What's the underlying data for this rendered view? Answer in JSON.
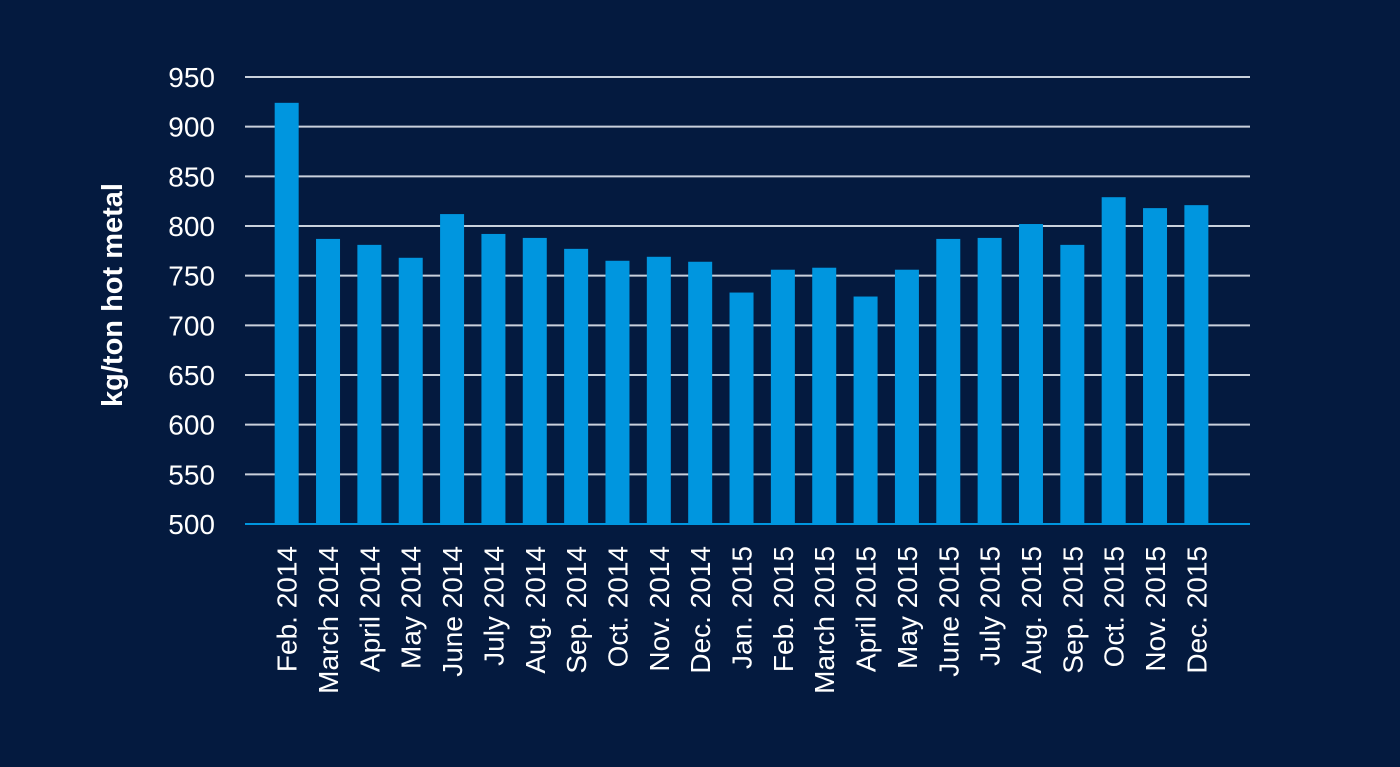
{
  "chart_data": {
    "type": "bar",
    "title": "",
    "xlabel": "",
    "ylabel": "kg/ton hot metal",
    "ylim": [
      500,
      950
    ],
    "yticks": [
      500,
      550,
      600,
      650,
      700,
      750,
      800,
      850,
      900,
      950
    ],
    "grid": true,
    "categories": [
      "Feb. 2014",
      "March 2014",
      "April 2014",
      "May 2014",
      "June 2014",
      "July 2014",
      "Aug. 2014",
      "Sep. 2014",
      "Oct. 2014",
      "Nov. 2014",
      "Dec. 2014",
      "Jan. 2015",
      "Feb. 2015",
      "March 2015",
      "April 2015",
      "May 2015",
      "June 2015",
      "July 2015",
      "Aug. 2015",
      "Sep. 2015",
      "Oct. 2015",
      "Nov. 2015",
      "Dec. 2015"
    ],
    "values": [
      924,
      787,
      781,
      768,
      812,
      792,
      788,
      777,
      765,
      769,
      764,
      733,
      756,
      758,
      729,
      756,
      787,
      788,
      802,
      781,
      829,
      818,
      821
    ],
    "colors": {
      "background": "#041a3f",
      "bar": "#0096df",
      "grid": "#c9d1dc",
      "axis": "#0096df",
      "text": "#ffffff"
    }
  }
}
